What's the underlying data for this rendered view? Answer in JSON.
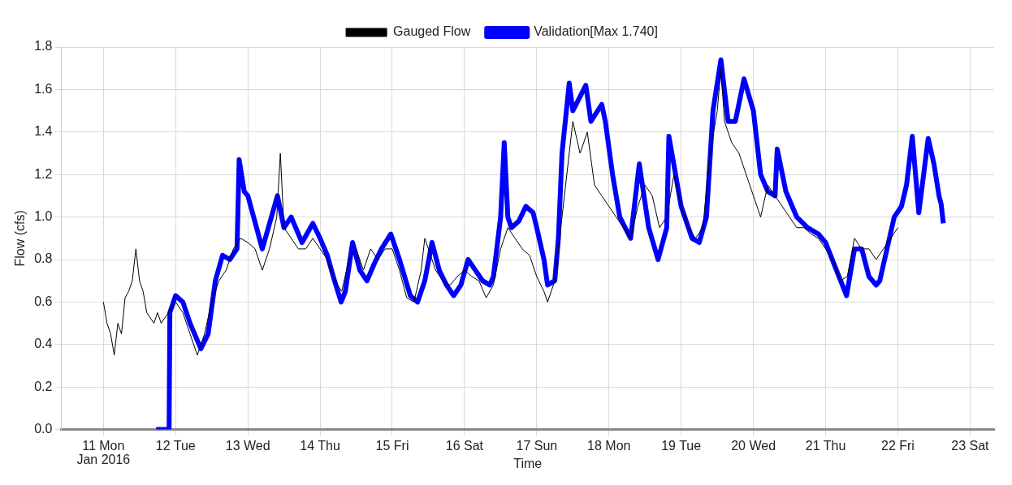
{
  "chart_data": {
    "type": "line",
    "xlabel": "Time",
    "ylabel": "Flow (cfs)",
    "annotations": [
      "Jan 2016"
    ],
    "xlim": [
      "2016-01-10T10:00",
      "2016-01-23T08:00"
    ],
    "xticks": [
      {
        "value": "2016-01-11",
        "label": "11 Mon"
      },
      {
        "value": "2016-01-12",
        "label": "12 Tue"
      },
      {
        "value": "2016-01-13",
        "label": "13 Wed"
      },
      {
        "value": "2016-01-14",
        "label": "14 Thu"
      },
      {
        "value": "2016-01-15",
        "label": "15 Fri"
      },
      {
        "value": "2016-01-16",
        "label": "16 Sat"
      },
      {
        "value": "2016-01-17",
        "label": "17 Sun"
      },
      {
        "value": "2016-01-18",
        "label": "18 Mon"
      },
      {
        "value": "2016-01-19",
        "label": "19 Tue"
      },
      {
        "value": "2016-01-20",
        "label": "20 Wed"
      },
      {
        "value": "2016-01-21",
        "label": "21 Thu"
      },
      {
        "value": "2016-01-22",
        "label": "22 Fri"
      },
      {
        "value": "2016-01-23",
        "label": "23 Sat"
      }
    ],
    "ylim": [
      0,
      1.8
    ],
    "yticks": [
      {
        "value": 0,
        "label": "0.0"
      },
      {
        "value": 0.2,
        "label": "0.2"
      },
      {
        "value": 0.4,
        "label": "0.4"
      },
      {
        "value": 0.6,
        "label": "0.6"
      },
      {
        "value": 0.8,
        "label": "0.8"
      },
      {
        "value": 1,
        "label": "1.0"
      },
      {
        "value": 1.2,
        "label": "1.2"
      },
      {
        "value": 1.4,
        "label": "1.4"
      },
      {
        "value": 1.6,
        "label": "1.6"
      },
      {
        "value": 1.8,
        "label": "1.8"
      }
    ],
    "grid": true,
    "legend": "top",
    "marker": "none",
    "line_style": "solid",
    "series": [
      {
        "name": "Validation[Max 1.740]",
        "color": "#0000ff",
        "x": [
          "2016-01-11T17:31",
          "2016-01-11T21:50",
          "2016-01-11T22:05",
          "2016-01-12T00:00",
          "2016-01-12T02:24",
          "2016-01-12T04:48",
          "2016-01-12T07:12",
          "2016-01-12T08:24",
          "2016-01-12T10:48",
          "2016-01-12T13:12",
          "2016-01-12T15:36",
          "2016-01-12T18:00",
          "2016-01-12T20:24",
          "2016-01-12T21:07",
          "2016-01-12T22:48",
          "2016-01-13T00:00",
          "2016-01-13T04:48",
          "2016-01-13T09:50",
          "2016-01-13T12:00",
          "2016-01-13T14:24",
          "2016-01-13T18:00",
          "2016-01-13T21:36",
          "2016-01-14T00:00",
          "2016-01-14T02:24",
          "2016-01-14T04:48",
          "2016-01-14T07:00",
          "2016-01-14T08:24",
          "2016-01-14T10:48",
          "2016-01-14T13:12",
          "2016-01-14T15:36",
          "2016-01-14T18:00",
          "2016-01-14T20:24",
          "2016-01-14T23:30",
          "2016-01-15T02:24",
          "2016-01-15T06:00",
          "2016-01-15T08:24",
          "2016-01-15T10:48",
          "2016-01-15T13:12",
          "2016-01-15T15:36",
          "2016-01-15T18:00",
          "2016-01-15T20:24",
          "2016-01-15T22:48",
          "2016-01-16T01:12",
          "2016-01-16T03:36",
          "2016-01-16T06:00",
          "2016-01-16T08:24",
          "2016-01-16T09:36",
          "2016-01-16T12:00",
          "2016-01-16T13:12",
          "2016-01-16T14:24",
          "2016-01-16T15:36",
          "2016-01-16T18:00",
          "2016-01-16T20:24",
          "2016-01-16T22:48",
          "2016-01-17T00:00",
          "2016-01-17T02:24",
          "2016-01-17T03:36",
          "2016-01-17T06:00",
          "2016-01-17T07:12",
          "2016-01-17T08:24",
          "2016-01-17T10:48",
          "2016-01-17T12:00",
          "2016-01-17T16:19",
          "2016-01-17T18:00",
          "2016-01-17T21:36",
          "2016-01-17T22:48",
          "2016-01-18T01:12",
          "2016-01-18T03:36",
          "2016-01-18T07:12",
          "2016-01-18T10:05",
          "2016-01-18T13:12",
          "2016-01-18T16:19",
          "2016-01-18T19:12",
          "2016-01-18T19:55",
          "2016-01-19T00:00",
          "2016-01-19T03:36",
          "2016-01-19T06:00",
          "2016-01-19T08:24",
          "2016-01-19T10:34",
          "2016-01-19T13:12",
          "2016-01-19T15:36",
          "2016-01-19T18:00",
          "2016-01-19T20:53",
          "2016-01-20T00:00",
          "2016-01-20T02:24",
          "2016-01-20T04:48",
          "2016-01-20T07:12",
          "2016-01-20T07:55",
          "2016-01-20T10:48",
          "2016-01-20T14:24",
          "2016-01-20T18:00",
          "2016-01-20T21:36",
          "2016-01-21T00:00",
          "2016-01-21T03:36",
          "2016-01-21T06:58",
          "2016-01-21T09:36",
          "2016-01-21T12:00",
          "2016-01-21T14:24",
          "2016-01-21T16:48",
          "2016-01-21T18:00",
          "2016-01-21T20:24",
          "2016-01-21T22:48",
          "2016-01-22T01:12",
          "2016-01-22T02:53",
          "2016-01-22T04:48",
          "2016-01-22T06:58",
          "2016-01-22T10:05",
          "2016-01-22T12:00",
          "2016-01-22T13:41",
          "2016-01-22T14:24",
          "2016-01-22T15:07"
        ],
        "values": [
          0,
          0,
          0.55,
          0.63,
          0.6,
          0.5,
          0.42,
          0.38,
          0.45,
          0.7,
          0.82,
          0.8,
          0.85,
          1.27,
          1.12,
          1.1,
          0.85,
          1.1,
          0.95,
          1.0,
          0.88,
          0.97,
          0.9,
          0.82,
          0.7,
          0.6,
          0.65,
          0.88,
          0.75,
          0.7,
          0.78,
          0.85,
          0.92,
          0.8,
          0.63,
          0.6,
          0.7,
          0.88,
          0.75,
          0.68,
          0.63,
          0.68,
          0.8,
          0.75,
          0.7,
          0.68,
          0.72,
          1.0,
          1.35,
          1.0,
          0.95,
          0.98,
          1.05,
          1.02,
          0.95,
          0.8,
          0.68,
          0.7,
          0.9,
          1.3,
          1.63,
          1.5,
          1.62,
          1.45,
          1.53,
          1.45,
          1.2,
          1.0,
          0.9,
          1.25,
          0.95,
          0.8,
          0.95,
          1.38,
          1.05,
          0.9,
          0.88,
          1.0,
          1.5,
          1.74,
          1.45,
          1.45,
          1.65,
          1.5,
          1.2,
          1.12,
          1.1,
          1.32,
          1.12,
          1.0,
          0.95,
          0.92,
          0.88,
          0.75,
          0.63,
          0.85,
          0.85,
          0.72,
          0.68,
          0.7,
          0.85,
          1.0,
          1.05,
          1.15,
          1.38,
          1.02,
          1.37,
          1.25,
          1.1,
          1.06,
          0.97
        ]
      },
      {
        "name": "Gauged Flow",
        "color": "#000000",
        "x": [
          "2016-01-11T00:00",
          "2016-01-11T01:12",
          "2016-01-11T02:24",
          "2016-01-11T03:36",
          "2016-01-11T04:48",
          "2016-01-11T06:00",
          "2016-01-11T07:12",
          "2016-01-11T08:24",
          "2016-01-11T09:36",
          "2016-01-11T10:48",
          "2016-01-11T12:00",
          "2016-01-11T13:12",
          "2016-01-11T14:24",
          "2016-01-11T16:48",
          "2016-01-11T18:00",
          "2016-01-11T19:12",
          "2016-01-11T21:36",
          "2016-01-12T00:00",
          "2016-01-12T02:24",
          "2016-01-12T04:48",
          "2016-01-12T07:12",
          "2016-01-12T09:36",
          "2016-01-12T12:00",
          "2016-01-12T14:24",
          "2016-01-12T16:48",
          "2016-01-12T19:12",
          "2016-01-12T21:36",
          "2016-01-13T00:00",
          "2016-01-13T02:24",
          "2016-01-13T04:48",
          "2016-01-13T07:12",
          "2016-01-13T09:36",
          "2016-01-13T10:48",
          "2016-01-13T12:00",
          "2016-01-13T14:24",
          "2016-01-13T16:48",
          "2016-01-13T19:12",
          "2016-01-13T21:36",
          "2016-01-14T00:00",
          "2016-01-14T02:24",
          "2016-01-14T04:48",
          "2016-01-14T07:12",
          "2016-01-14T09:36",
          "2016-01-14T12:00",
          "2016-01-14T14:24",
          "2016-01-14T16:48",
          "2016-01-14T19:12",
          "2016-01-14T21:36",
          "2016-01-15T00:00",
          "2016-01-15T02:24",
          "2016-01-15T04:48",
          "2016-01-15T07:12",
          "2016-01-15T09:36",
          "2016-01-15T10:48",
          "2016-01-15T14:24",
          "2016-01-15T16:48",
          "2016-01-15T19:12",
          "2016-01-15T21:36",
          "2016-01-16T00:00",
          "2016-01-16T02:24",
          "2016-01-16T04:48",
          "2016-01-16T07:12",
          "2016-01-16T09:36",
          "2016-01-16T12:00",
          "2016-01-16T14:24",
          "2016-01-16T16:48",
          "2016-01-16T19:12",
          "2016-01-16T21:36",
          "2016-01-17T00:00",
          "2016-01-17T02:24",
          "2016-01-17T03:36",
          "2016-01-17T06:00",
          "2016-01-17T08:24",
          "2016-01-17T10:48",
          "2016-01-17T12:00",
          "2016-01-17T14:24",
          "2016-01-17T16:48",
          "2016-01-17T19:12",
          "2016-01-17T21:36",
          "2016-01-18T00:00",
          "2016-01-18T02:24",
          "2016-01-18T04:48",
          "2016-01-18T07:12",
          "2016-01-18T09:36",
          "2016-01-18T12:00",
          "2016-01-18T14:24",
          "2016-01-18T16:48",
          "2016-01-18T19:12",
          "2016-01-18T21:36",
          "2016-01-19T00:00",
          "2016-01-19T02:24",
          "2016-01-19T04:48",
          "2016-01-19T07:12",
          "2016-01-19T09:36",
          "2016-01-19T12:00",
          "2016-01-19T13:12",
          "2016-01-19T14:24",
          "2016-01-19T16:48",
          "2016-01-19T19:12",
          "2016-01-19T21:36",
          "2016-01-20T00:00",
          "2016-01-20T02:24",
          "2016-01-20T04:48",
          "2016-01-20T07:12",
          "2016-01-20T09:36",
          "2016-01-20T12:00",
          "2016-01-20T14:24",
          "2016-01-20T16:48",
          "2016-01-20T19:12",
          "2016-01-20T21:36",
          "2016-01-21T00:00",
          "2016-01-21T02:24",
          "2016-01-21T04:48",
          "2016-01-21T07:12",
          "2016-01-21T09:36",
          "2016-01-21T12:00",
          "2016-01-21T14:24",
          "2016-01-21T16:48",
          "2016-01-21T19:12",
          "2016-01-21T21:36",
          "2016-01-22T00:00"
        ],
        "values": [
          0.6,
          0.5,
          0.45,
          0.35,
          0.5,
          0.45,
          0.62,
          0.65,
          0.7,
          0.85,
          0.7,
          0.65,
          0.55,
          0.5,
          0.55,
          0.5,
          0.55,
          0.6,
          0.55,
          0.45,
          0.35,
          0.45,
          0.6,
          0.7,
          0.75,
          0.85,
          0.9,
          0.88,
          0.85,
          0.75,
          0.85,
          1.0,
          1.3,
          0.95,
          0.9,
          0.85,
          0.85,
          0.9,
          0.85,
          0.8,
          0.7,
          0.65,
          0.8,
          0.85,
          0.75,
          0.85,
          0.8,
          0.85,
          0.85,
          0.75,
          0.62,
          0.6,
          0.75,
          0.9,
          0.75,
          0.7,
          0.68,
          0.72,
          0.75,
          0.72,
          0.7,
          0.62,
          0.68,
          0.85,
          0.95,
          0.9,
          0.85,
          0.82,
          0.72,
          0.65,
          0.6,
          0.7,
          1.0,
          1.3,
          1.45,
          1.3,
          1.4,
          1.15,
          1.1,
          1.05,
          1.0,
          0.95,
          0.9,
          1.05,
          1.15,
          1.1,
          0.95,
          1.0,
          1.2,
          1.05,
          0.95,
          0.9,
          0.95,
          1.3,
          1.5,
          1.7,
          1.45,
          1.35,
          1.3,
          1.2,
          1.1,
          1.0,
          1.15,
          1.1,
          1.05,
          1.0,
          0.95,
          0.95,
          0.92,
          0.9,
          0.85,
          0.8,
          0.7,
          0.72,
          0.9,
          0.85,
          0.85,
          0.8,
          0.85,
          0.9,
          0.95
        ]
      }
    ]
  }
}
